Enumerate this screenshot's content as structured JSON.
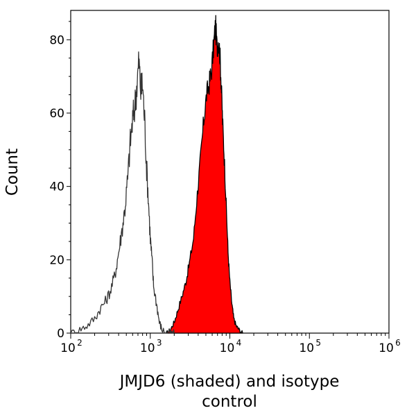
{
  "chart_data": {
    "type": "area",
    "xlabel": [
      "JMJD6 (shaded) and isotype",
      "control"
    ],
    "ylabel": "Count",
    "x_scale": "log",
    "xlim": [
      100,
      1000000
    ],
    "ylim": [
      0,
      88
    ],
    "x_ticks": [
      {
        "value": 100,
        "base": "10",
        "exp": "2"
      },
      {
        "value": 1000,
        "base": "10",
        "exp": "3"
      },
      {
        "value": 10000,
        "base": "10",
        "exp": "4"
      },
      {
        "value": 100000,
        "base": "10",
        "exp": "5"
      },
      {
        "value": 1000000,
        "base": "10",
        "exp": "6"
      }
    ],
    "y_ticks": [
      0,
      20,
      40,
      60,
      80
    ],
    "grid": false,
    "series": [
      {
        "name": "JMJD6",
        "style": "filled",
        "fill": "#ff0000",
        "stroke": "#000000",
        "x": [
          1600,
          1800,
          2000,
          2200,
          2500,
          2800,
          3100,
          3500,
          3900,
          4300,
          4700,
          5100,
          5500,
          5900,
          6300,
          6600,
          6900,
          7200,
          7500,
          7800,
          8100,
          8500,
          9000,
          9500,
          10000,
          10600,
          11200,
          12000,
          13000,
          14500
        ],
        "y": [
          0,
          1,
          3,
          6,
          10,
          14,
          19,
          26,
          38,
          48,
          58,
          65,
          68,
          72,
          79,
          84,
          78,
          80,
          76,
          68,
          58,
          48,
          35,
          22,
          14,
          8,
          4,
          2,
          1,
          0
        ]
      },
      {
        "name": "Isotype control",
        "style": "outline",
        "stroke": "#333333",
        "x": [
          100,
          130,
          160,
          200,
          240,
          280,
          320,
          360,
          400,
          440,
          480,
          520,
          560,
          600,
          640,
          680,
          720,
          760,
          800,
          850,
          900,
          950,
          1000,
          1050,
          1100,
          1200,
          1300,
          1400,
          1600,
          1800,
          2000
        ],
        "y": [
          0,
          1,
          2,
          4,
          7,
          9,
          12,
          16,
          22,
          28,
          34,
          42,
          52,
          58,
          62,
          68,
          74,
          66,
          68,
          58,
          45,
          36,
          26,
          20,
          13,
          8,
          3,
          1,
          0,
          0,
          0
        ]
      }
    ]
  }
}
